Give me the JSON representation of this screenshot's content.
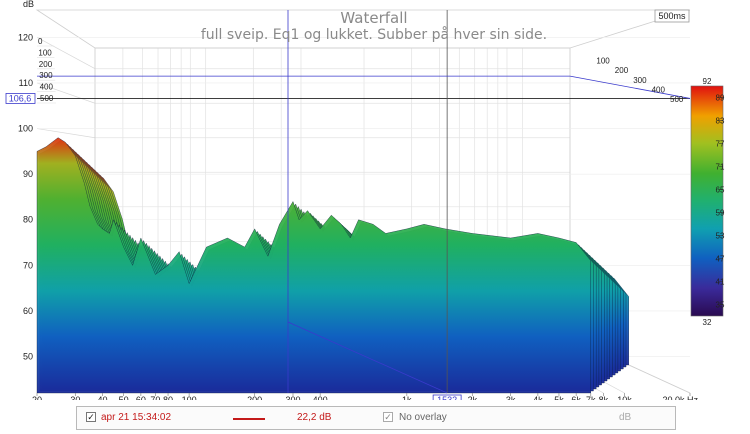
{
  "chart_data": {
    "type": "area",
    "title": "Waterfall",
    "subtitle": "full sveip. Eq1 og lukket. Subber på hver sin side.",
    "time_window_label": "500ms",
    "ylabel": "dB",
    "xlabel": "Hz",
    "x_scale": "log",
    "xlim": [
      20,
      20000
    ],
    "ylim": [
      42,
      126
    ],
    "x_ticks": [
      "20",
      "30",
      "40",
      "50",
      "60",
      "70",
      "80",
      "100",
      "200",
      "300",
      "400",
      "1k",
      "2k",
      "3k",
      "4k",
      "5k",
      "6k",
      "7k",
      "8k",
      "10k",
      "20,0k Hz"
    ],
    "x_tick_values": [
      20,
      30,
      40,
      50,
      60,
      70,
      80,
      100,
      200,
      300,
      400,
      1000,
      2000,
      3000,
      4000,
      5000,
      6000,
      7000,
      8000,
      10000,
      20000
    ],
    "y_ticks": [
      50,
      60,
      70,
      80,
      90,
      100,
      110,
      120
    ],
    "time_ticks": [
      "0",
      "100",
      "200",
      "300",
      "400",
      "500"
    ],
    "cursor": {
      "level_label": "106,6",
      "level": 106.6,
      "freq_label": "1532",
      "freq": 1532
    },
    "colorbar": {
      "min": 32,
      "max": 92,
      "ticks": [
        35,
        41,
        47,
        53,
        59,
        65,
        71,
        77,
        83,
        89
      ]
    },
    "front_slice": {
      "x": [
        20,
        22,
        25,
        27,
        30,
        33,
        35,
        38,
        40,
        43,
        45,
        50,
        55,
        60,
        70,
        80,
        90,
        100,
        120,
        150,
        180,
        200,
        230,
        260,
        300,
        320,
        350,
        400,
        450,
        500,
        550,
        600,
        700,
        800,
        1000,
        1200,
        1500,
        2000,
        3000,
        4000,
        5000,
        6000,
        7000
      ],
      "y": [
        95,
        96,
        98,
        97,
        94,
        88,
        83,
        79,
        78,
        77,
        80,
        74,
        70,
        76,
        68,
        70,
        73,
        66,
        74,
        76,
        74,
        78,
        72,
        79,
        84,
        80,
        82,
        78,
        81,
        79,
        76,
        80,
        79,
        77,
        78,
        79,
        78,
        77,
        76,
        77,
        76,
        75,
        71
      ]
    }
  },
  "legend": {
    "checked_mark": "✓",
    "timestamp": "apr 21 15:34:02",
    "line_color": "#c41a1a",
    "level": "22,2 dB",
    "overlay_label": "No overlay",
    "unit": "dB"
  }
}
